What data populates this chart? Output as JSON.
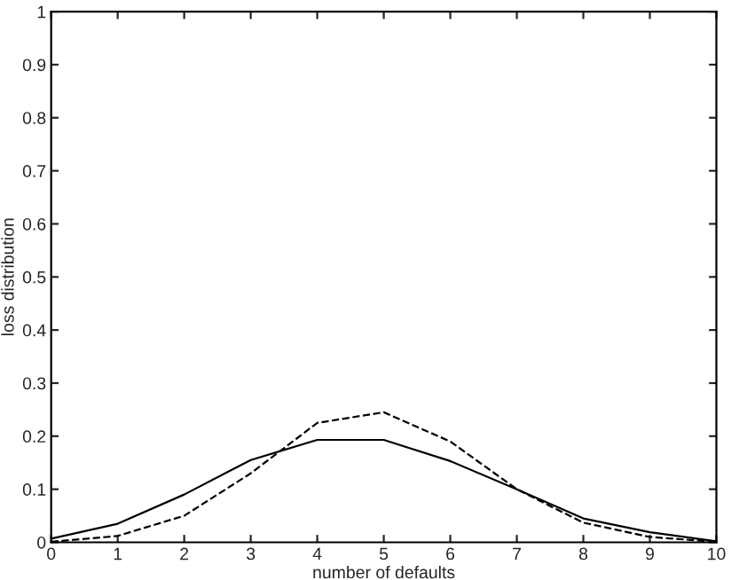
{
  "chart_data": {
    "type": "line",
    "xlabel": "number of defaults",
    "ylabel": "loss distribution",
    "x": [
      0,
      1,
      2,
      3,
      4,
      5,
      6,
      7,
      8,
      9,
      10
    ],
    "series": [
      {
        "color": "#000000",
        "line_style": "solid",
        "values": [
          0.007,
          0.035,
          0.09,
          0.155,
          0.193,
          0.193,
          0.153,
          0.1,
          0.045,
          0.019,
          0.002
        ]
      },
      {
        "color": "#000000",
        "line_style": "dashed",
        "values": [
          0.001,
          0.012,
          0.05,
          0.13,
          0.225,
          0.245,
          0.19,
          0.1,
          0.037,
          0.01,
          0.001
        ]
      }
    ],
    "xlim": [
      0,
      10
    ],
    "xticks": [
      0,
      1,
      2,
      3,
      4,
      5,
      6,
      7,
      8,
      9,
      10
    ],
    "ylim": [
      0,
      1
    ],
    "yticks": [
      0,
      0.1,
      0.2,
      0.3,
      0.4,
      0.5,
      0.6,
      0.7,
      0.8,
      0.9,
      1
    ],
    "grid": false
  }
}
